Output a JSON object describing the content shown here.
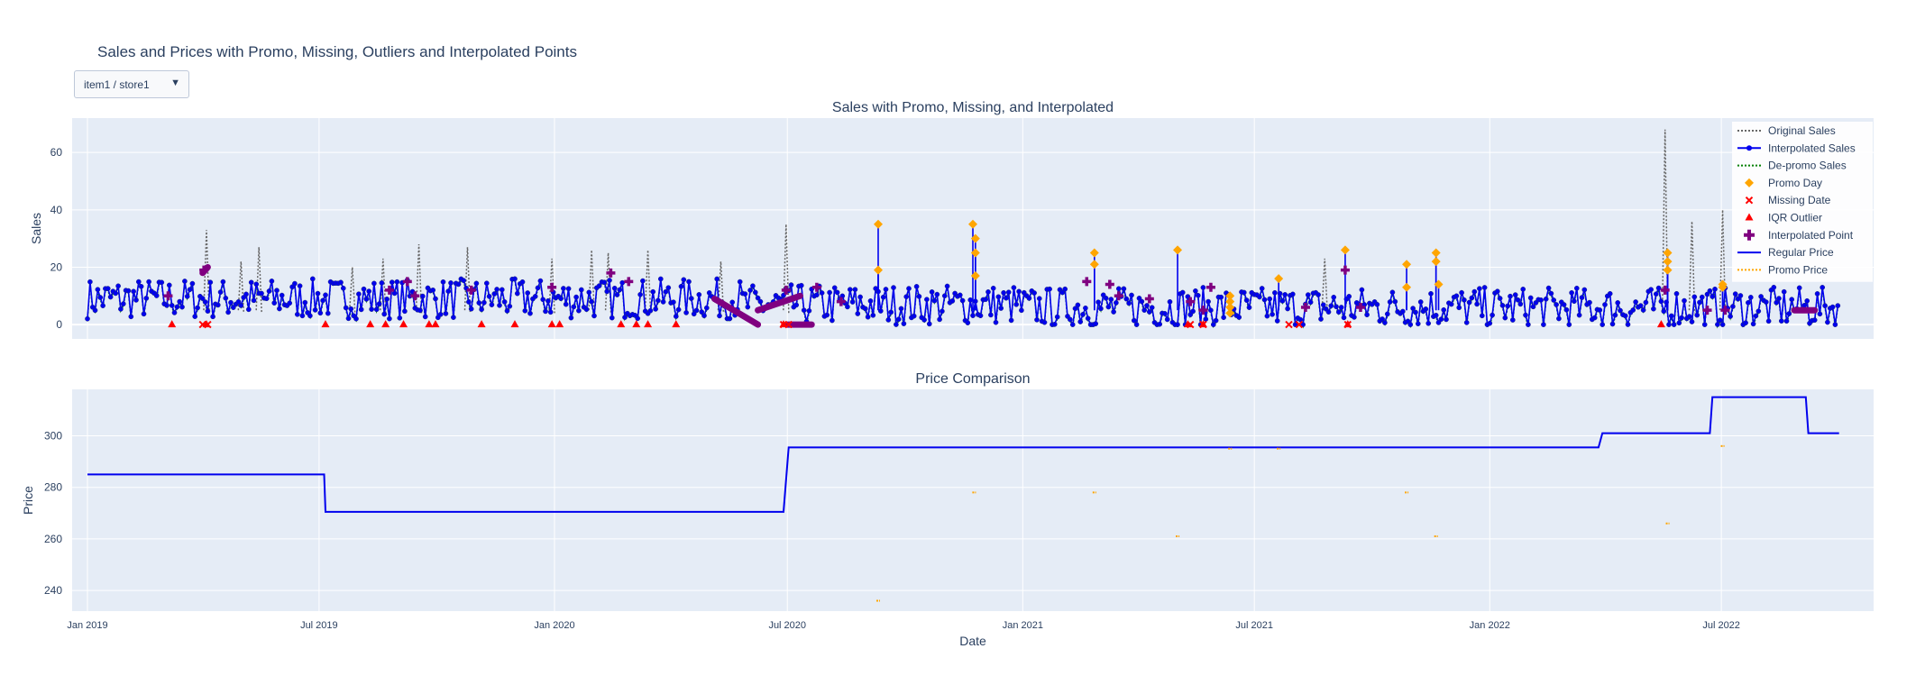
{
  "title": "Sales and Prices with Promo, Missing, Outliers and Interpolated Points",
  "dropdown": {
    "selected": "item1 / store1",
    "arrow": "▼"
  },
  "colors": {
    "plot_bg": "#e5ecf6",
    "grid": "#ffffff",
    "text": "#2a3f5f",
    "original": "#666666",
    "interpolated": "#0000ee",
    "depromo": "#008000",
    "promo": "#ffa500",
    "missing": "#ff0000",
    "outlier": "#ff0000",
    "interp_point": "#800080",
    "regular_price": "#0000ee",
    "promo_price": "#ffa500"
  },
  "chart_data": [
    {
      "type": "line",
      "title": "Sales with Promo, Missing, and Interpolated",
      "xlabel": "",
      "ylabel": "Sales",
      "xlim": [
        "2018-12-20",
        "2022-10-28"
      ],
      "ylim": [
        -5,
        72
      ],
      "yticks": [
        0,
        20,
        40,
        60
      ],
      "grid": true,
      "legend_position": "top-right",
      "series_names": {
        "original": "Original Sales",
        "interpolated": "Interpolated Sales",
        "depromo": "De-promo Sales",
        "promo": "Promo Day",
        "missing": "Missing Date",
        "outlier": "IQR Outlier",
        "interp_point": "Interpolated Point",
        "regular_price": "Regular Price",
        "promo_price": "Promo Price"
      },
      "original_spikes": [
        {
          "x": "2019-04-04",
          "y": 33
        },
        {
          "x": "2019-05-01",
          "y": 22
        },
        {
          "x": "2019-05-15",
          "y": 27
        },
        {
          "x": "2019-07-27",
          "y": 20
        },
        {
          "x": "2019-08-20",
          "y": 23
        },
        {
          "x": "2019-09-17",
          "y": 28
        },
        {
          "x": "2019-10-25",
          "y": 27
        },
        {
          "x": "2019-12-30",
          "y": 23
        },
        {
          "x": "2020-01-30",
          "y": 26
        },
        {
          "x": "2020-02-12",
          "y": 25
        },
        {
          "x": "2020-03-14",
          "y": 26
        },
        {
          "x": "2020-05-10",
          "y": 22
        },
        {
          "x": "2020-06-30",
          "y": 35
        },
        {
          "x": "2021-08-25",
          "y": 23
        },
        {
          "x": "2022-05-18",
          "y": 68
        },
        {
          "x": "2022-06-08",
          "y": 36
        },
        {
          "x": "2022-07-02",
          "y": 40
        }
      ],
      "promo_days": [
        {
          "x": "2020-09-10",
          "y": 35
        },
        {
          "x": "2020-09-10",
          "y": 19
        },
        {
          "x": "2020-11-23",
          "y": 35
        },
        {
          "x": "2020-11-25",
          "y": 30
        },
        {
          "x": "2020-11-25",
          "y": 25
        },
        {
          "x": "2020-11-25",
          "y": 17
        },
        {
          "x": "2021-02-26",
          "y": 25
        },
        {
          "x": "2021-02-26",
          "y": 21
        },
        {
          "x": "2021-05-02",
          "y": 26
        },
        {
          "x": "2021-06-12",
          "y": 10
        },
        {
          "x": "2021-06-12",
          "y": 8
        },
        {
          "x": "2021-06-12",
          "y": 6
        },
        {
          "x": "2021-06-12",
          "y": 4
        },
        {
          "x": "2021-07-20",
          "y": 16
        },
        {
          "x": "2021-09-10",
          "y": 26
        },
        {
          "x": "2021-10-28",
          "y": 21
        },
        {
          "x": "2021-10-28",
          "y": 13
        },
        {
          "x": "2021-11-20",
          "y": 25
        },
        {
          "x": "2021-11-20",
          "y": 22
        },
        {
          "x": "2021-11-22",
          "y": 14
        },
        {
          "x": "2022-05-20",
          "y": 25
        },
        {
          "x": "2022-05-20",
          "y": 22
        },
        {
          "x": "2022-05-20",
          "y": 19
        },
        {
          "x": "2022-07-02",
          "y": 14
        },
        {
          "x": "2022-07-02",
          "y": 13
        }
      ],
      "missing_dates": [
        {
          "x": "2019-04-01",
          "y": 0
        },
        {
          "x": "2019-04-05",
          "y": 0
        },
        {
          "x": "2020-06-28",
          "y": 0
        },
        {
          "x": "2020-07-02",
          "y": 0
        },
        {
          "x": "2021-05-12",
          "y": 0
        },
        {
          "x": "2021-05-22",
          "y": 0
        },
        {
          "x": "2021-07-28",
          "y": 0
        },
        {
          "x": "2021-08-05",
          "y": 0
        },
        {
          "x": "2021-09-12",
          "y": 0
        }
      ],
      "iqr_outliers": [
        {
          "x": "2019-03-08",
          "y": 0
        },
        {
          "x": "2019-04-04",
          "y": 0
        },
        {
          "x": "2019-07-06",
          "y": 0
        },
        {
          "x": "2019-08-10",
          "y": 0
        },
        {
          "x": "2019-08-22",
          "y": 0
        },
        {
          "x": "2019-09-05",
          "y": 0
        },
        {
          "x": "2019-09-25",
          "y": 0
        },
        {
          "x": "2019-09-30",
          "y": 0
        },
        {
          "x": "2019-11-05",
          "y": 0
        },
        {
          "x": "2019-12-01",
          "y": 0
        },
        {
          "x": "2019-12-30",
          "y": 0
        },
        {
          "x": "2020-01-05",
          "y": 0
        },
        {
          "x": "2020-02-22",
          "y": 0
        },
        {
          "x": "2020-03-05",
          "y": 0
        },
        {
          "x": "2020-03-14",
          "y": 0
        },
        {
          "x": "2020-04-05",
          "y": 0
        },
        {
          "x": "2020-06-28",
          "y": 0
        },
        {
          "x": "2021-05-10",
          "y": 0
        },
        {
          "x": "2021-05-22",
          "y": 0
        },
        {
          "x": "2021-09-12",
          "y": 0
        },
        {
          "x": "2022-05-15",
          "y": 0
        }
      ],
      "interpolated_segments": [
        {
          "points": [
            {
              "x": "2020-05-05",
              "y": 9
            },
            {
              "x": "2020-06-08",
              "y": 0
            }
          ]
        },
        {
          "points": [
            {
              "x": "2020-06-08",
              "y": 5
            },
            {
              "x": "2020-07-11",
              "y": 10
            }
          ]
        },
        {
          "points": [
            {
              "x": "2020-07-01",
              "y": 0
            },
            {
              "x": "2020-07-20",
              "y": 0
            }
          ]
        },
        {
          "points": [
            {
              "x": "2019-04-01",
              "y": 18
            },
            {
              "x": "2019-04-05",
              "y": 20
            }
          ]
        },
        {
          "points": [
            {
              "x": "2022-08-27",
              "y": 5
            },
            {
              "x": "2022-09-12",
              "y": 5
            }
          ]
        }
      ],
      "interpolated_points": [
        {
          "x": "2019-03-05",
          "y": 10
        },
        {
          "x": "2019-04-02",
          "y": 19
        },
        {
          "x": "2019-08-25",
          "y": 12
        },
        {
          "x": "2019-09-08",
          "y": 15
        },
        {
          "x": "2019-09-14",
          "y": 10
        },
        {
          "x": "2019-10-28",
          "y": 12
        },
        {
          "x": "2019-12-30",
          "y": 13
        },
        {
          "x": "2020-02-14",
          "y": 18
        },
        {
          "x": "2020-02-28",
          "y": 15
        },
        {
          "x": "2020-07-24",
          "y": 13
        },
        {
          "x": "2020-06-30",
          "y": 12
        },
        {
          "x": "2020-08-12",
          "y": 8
        },
        {
          "x": "2021-02-20",
          "y": 15
        },
        {
          "x": "2021-03-10",
          "y": 14
        },
        {
          "x": "2021-03-17",
          "y": 10
        },
        {
          "x": "2021-04-10",
          "y": 9
        },
        {
          "x": "2021-05-12",
          "y": 8
        },
        {
          "x": "2021-05-22",
          "y": 5
        },
        {
          "x": "2021-05-28",
          "y": 13
        },
        {
          "x": "2021-08-10",
          "y": 6
        },
        {
          "x": "2021-09-10",
          "y": 19
        },
        {
          "x": "2021-09-22",
          "y": 6
        },
        {
          "x": "2022-05-18",
          "y": 12
        },
        {
          "x": "2022-06-20",
          "y": 5
        },
        {
          "x": "2022-07-04",
          "y": 5
        }
      ]
    },
    {
      "type": "line",
      "title": "Price Comparison",
      "xlabel": "Date",
      "ylabel": "Price",
      "xlim": [
        "2018-12-20",
        "2022-10-28"
      ],
      "ylim": [
        232,
        318
      ],
      "yticks": [
        240,
        260,
        280,
        300
      ],
      "grid": true,
      "x_tick_labels": [
        {
          "x": "2019-01-01",
          "label": "Jan 2019"
        },
        {
          "x": "2019-07-01",
          "label": "Jul 2019"
        },
        {
          "x": "2020-01-01",
          "label": "Jan 2020"
        },
        {
          "x": "2020-07-01",
          "label": "Jul 2020"
        },
        {
          "x": "2021-01-01",
          "label": "Jan 2021"
        },
        {
          "x": "2021-07-01",
          "label": "Jul 2021"
        },
        {
          "x": "2022-01-01",
          "label": "Jan 2022"
        },
        {
          "x": "2022-07-01",
          "label": "Jul 2022"
        }
      ],
      "regular_price": [
        {
          "x": "2019-01-01",
          "y": 285
        },
        {
          "x": "2019-07-05",
          "y": 285
        },
        {
          "x": "2019-07-06",
          "y": 270.5
        },
        {
          "x": "2020-06-28",
          "y": 270.5
        },
        {
          "x": "2020-07-02",
          "y": 295.5
        },
        {
          "x": "2022-03-27",
          "y": 295.5
        },
        {
          "x": "2022-03-30",
          "y": 301
        },
        {
          "x": "2022-06-22",
          "y": 301
        },
        {
          "x": "2022-06-24",
          "y": 315
        },
        {
          "x": "2022-09-05",
          "y": 315
        },
        {
          "x": "2022-09-07",
          "y": 301
        },
        {
          "x": "2022-10-01",
          "y": 301
        }
      ],
      "promo_price": [
        {
          "x": "2020-09-10",
          "y": 236
        },
        {
          "x": "2020-11-24",
          "y": 278
        },
        {
          "x": "2021-02-26",
          "y": 278
        },
        {
          "x": "2021-05-02",
          "y": 261
        },
        {
          "x": "2021-06-12",
          "y": 295
        },
        {
          "x": "2021-07-20",
          "y": 295
        },
        {
          "x": "2021-10-28",
          "y": 278
        },
        {
          "x": "2021-11-20",
          "y": 261
        },
        {
          "x": "2022-05-20",
          "y": 266
        },
        {
          "x": "2022-07-02",
          "y": 296
        }
      ]
    }
  ]
}
